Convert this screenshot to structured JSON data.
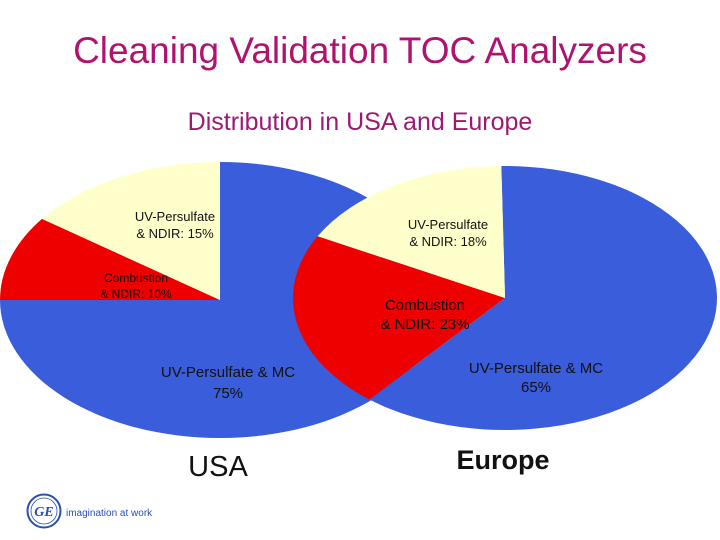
{
  "slide": {
    "title": "Cleaning Validation TOC Analyzers",
    "subtitle": "Distribution in USA and Europe"
  },
  "colors": {
    "title": "#b0136f",
    "subtitle": "#9c1a72",
    "uv_persulfate_mc": "#3a5ddc",
    "combustion_ndir": "#ee0000",
    "uv_persulfate_ndir": "#ffffcc"
  },
  "chart_data": [
    {
      "type": "pie",
      "title": "USA",
      "slices": [
        {
          "label_line1": "UV-Persulfate & MC",
          "label_line2": "75%",
          "value": 75,
          "color": "#3a5ddc"
        },
        {
          "label_line1": "Combustion",
          "label_line2": "& NDIR: 10%",
          "value": 10,
          "color": "#ee0000"
        },
        {
          "label_line1": "UV-Persulfate",
          "label_line2": "& NDIR:   15%",
          "value": 15,
          "color": "#ffffcc"
        }
      ]
    },
    {
      "type": "pie",
      "title": "Europe",
      "slices": [
        {
          "label_line1": "UV-Persulfate & MC",
          "label_line2": "65%",
          "value": 65,
          "color": "#3a5ddc"
        },
        {
          "label_line1": "Combustion",
          "label_line2": "& NDIR:  23%",
          "value": 23,
          "color": "#ee0000"
        },
        {
          "label_line1": "UV-Persulfate",
          "label_line2": "& NDIR:  18%",
          "value": 18,
          "color": "#ffffcc"
        }
      ]
    }
  ],
  "logo": {
    "mark": "GE",
    "tagline": "imagination at work"
  }
}
